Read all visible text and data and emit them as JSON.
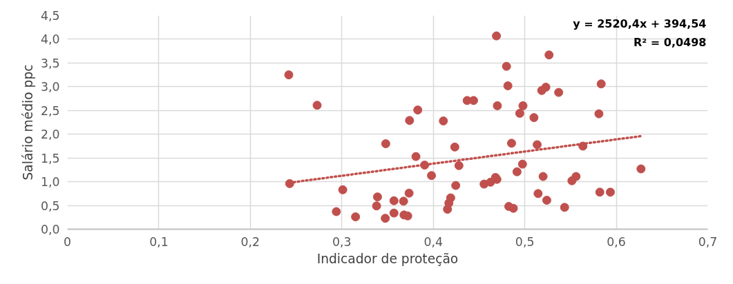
{
  "chart_data": {
    "type": "scatter",
    "xlabel": "Indicador de proteção",
    "ylabel": "Salário médio ppc",
    "xlim": [
      0,
      0.7
    ],
    "ylim": [
      0,
      4.5
    ],
    "xticks": [
      0,
      {
        "value": 0.1,
        "label": "0,1"
      },
      {
        "value": 0.2,
        "label": "0,2"
      },
      {
        "value": 0.3,
        "label": "0,3"
      },
      {
        "value": 0.4,
        "label": "0,4"
      },
      {
        "value": 0.5,
        "label": "0,5"
      },
      {
        "value": 0.6,
        "label": "0,6"
      },
      {
        "value": 0.7,
        "label": "0,7"
      }
    ],
    "yticks": [
      {
        "value": 0,
        "label": "0,0"
      },
      {
        "value": 0.5,
        "label": "0,5"
      },
      {
        "value": 1,
        "label": "1,0"
      },
      {
        "value": 1.5,
        "label": "1,5"
      },
      {
        "value": 2,
        "label": "2,0"
      },
      {
        "value": 2.5,
        "label": "2,5"
      },
      {
        "value": 3,
        "label": "3,0"
      },
      {
        "value": 3.5,
        "label": "3,5"
      },
      {
        "value": 4,
        "label": "4,0"
      },
      {
        "value": 4.5,
        "label": "4,5"
      }
    ],
    "grid": true,
    "marker": "circle",
    "annotations": [
      "y = 2520,4x + 394,54",
      "R² = 0,0498"
    ],
    "series": [
      {
        "color": "#c0504d",
        "x": [
          0.242,
          0.273,
          0.243,
          0.301,
          0.294,
          0.315,
          0.469,
          0.48,
          0.4815,
          0.437,
          0.444,
          0.47,
          0.498,
          0.4945,
          0.383,
          0.374,
          0.411,
          0.348,
          0.4235,
          0.4855,
          0.381,
          0.3905,
          0.428,
          0.4975,
          0.4915,
          0.398,
          0.4245,
          0.4555,
          0.4625,
          0.468,
          0.4695,
          0.339,
          0.338,
          0.3475,
          0.357,
          0.357,
          0.3675,
          0.3735,
          0.368,
          0.372,
          0.419,
          0.417,
          0.4155,
          0.4825,
          0.4875,
          0.5265,
          0.523,
          0.5185,
          0.537,
          0.5835,
          0.51,
          0.581,
          0.5135,
          0.5635,
          0.52,
          0.556,
          0.5515,
          0.627,
          0.5145,
          0.524,
          0.5435,
          0.582,
          0.5935
        ],
        "values": [
          3.25,
          2.61,
          0.96,
          0.83,
          0.37,
          0.26,
          4.07,
          3.43,
          3.02,
          2.71,
          2.71,
          2.6,
          2.6,
          2.44,
          2.51,
          2.29,
          2.28,
          1.8,
          1.73,
          1.81,
          1.53,
          1.35,
          1.34,
          1.37,
          1.21,
          1.13,
          0.92,
          0.95,
          0.99,
          1.09,
          1.05,
          0.68,
          0.49,
          0.23,
          0.6,
          0.34,
          0.59,
          0.76,
          0.3,
          0.28,
          0.66,
          0.55,
          0.42,
          0.48,
          0.44,
          3.67,
          2.99,
          2.92,
          2.88,
          3.06,
          2.35,
          2.43,
          1.78,
          1.75,
          1.11,
          1.11,
          1.02,
          1.27,
          0.75,
          0.61,
          0.46,
          0.78,
          0.78
        ]
      },
      {
        "color": "#c0504d",
        "type": "line",
        "line_style": "dotted",
        "marker": "none",
        "x": [
          0.243,
          0.627
        ],
        "values": [
          0.98,
          1.96
        ]
      }
    ]
  }
}
